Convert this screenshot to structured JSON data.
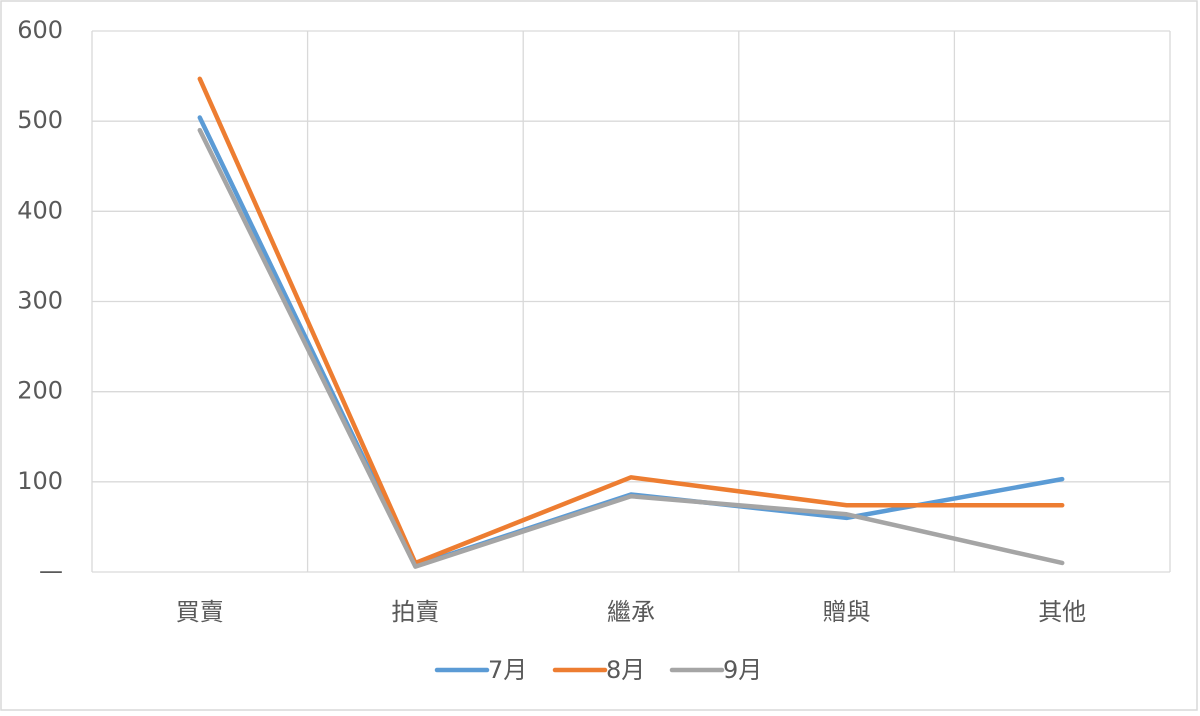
{
  "chart_data": {
    "type": "line",
    "categories": [
      "買賣",
      "拍賣",
      "繼承",
      "贈與",
      "其他"
    ],
    "series": [
      {
        "name": "7月",
        "color": "#5b9bd5",
        "values": [
          504,
          7,
          86,
          60,
          103
        ]
      },
      {
        "name": "8月",
        "color": "#ed7d31",
        "values": [
          547,
          10,
          105,
          74,
          74
        ]
      },
      {
        "name": "9月",
        "color": "#a5a5a5",
        "values": [
          490,
          6,
          84,
          64,
          10
        ]
      }
    ],
    "ylim": [
      0,
      600
    ],
    "yticks": [
      {
        "value": 0,
        "label": "—"
      },
      100,
      200,
      300,
      400,
      500,
      600
    ],
    "grid": true,
    "legend": "bottom"
  }
}
